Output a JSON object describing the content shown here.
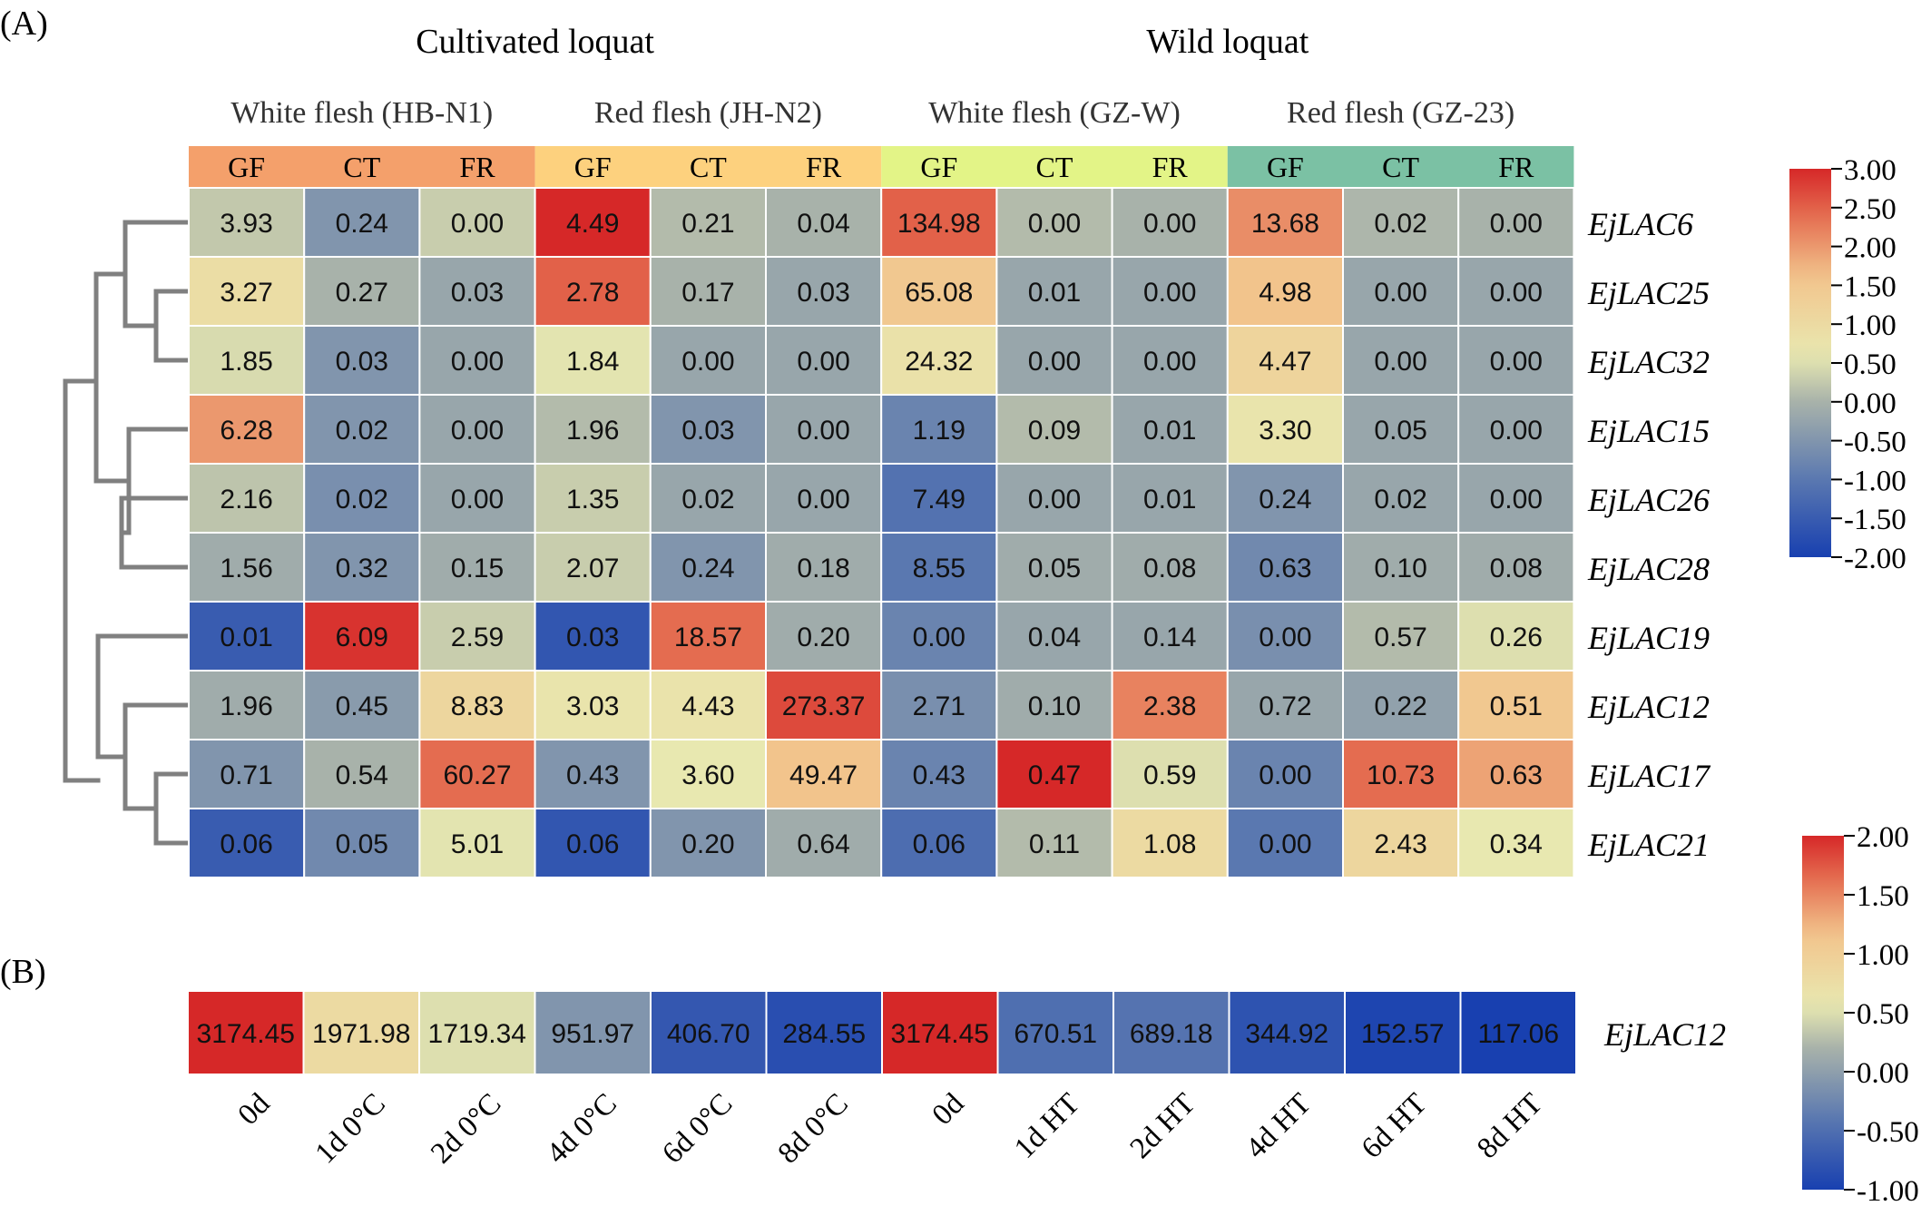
{
  "panel_labels": {
    "a": "(A)",
    "b": "(B)"
  },
  "chart_data": [
    {
      "type": "heatmap",
      "panel": "(A)",
      "top_groups": [
        "Cultivated loquat",
        "Wild loquat"
      ],
      "sub_groups": [
        {
          "label": "White flesh (HB-N1)",
          "color": "#F4A06B"
        },
        {
          "label": "Red flesh (JH-N2)",
          "color": "#FDD17E"
        },
        {
          "label": "White flesh (GZ-W)",
          "color": "#E3F487"
        },
        {
          "label": "Red flesh (GZ-23)",
          "color": "#7BC1A4"
        }
      ],
      "columns": [
        "GF",
        "CT",
        "FR",
        "GF",
        "CT",
        "FR",
        "GF",
        "CT",
        "FR",
        "GF",
        "CT",
        "FR"
      ],
      "rows": [
        "EjLAC6",
        "EjLAC25",
        "EjLAC32",
        "EjLAC15",
        "EjLAC26",
        "EjLAC28",
        "EjLAC19",
        "EjLAC12",
        "EjLAC17",
        "EjLAC21"
      ],
      "values": [
        [
          "3.93",
          "0.24",
          "0.00",
          "4.49",
          "0.21",
          "0.04",
          "134.98",
          "0.00",
          "0.00",
          "13.68",
          "0.02",
          "0.00"
        ],
        [
          "3.27",
          "0.27",
          "0.03",
          "2.78",
          "0.17",
          "0.03",
          "65.08",
          "0.01",
          "0.00",
          "4.98",
          "0.00",
          "0.00"
        ],
        [
          "1.85",
          "0.03",
          "0.00",
          "1.84",
          "0.00",
          "0.00",
          "24.32",
          "0.00",
          "0.00",
          "4.47",
          "0.00",
          "0.00"
        ],
        [
          "6.28",
          "0.02",
          "0.00",
          "1.96",
          "0.03",
          "0.00",
          "1.19",
          "0.09",
          "0.01",
          "3.30",
          "0.05",
          "0.00"
        ],
        [
          "2.16",
          "0.02",
          "0.00",
          "1.35",
          "0.02",
          "0.00",
          "7.49",
          "0.00",
          "0.01",
          "0.24",
          "0.02",
          "0.00"
        ],
        [
          "1.56",
          "0.32",
          "0.15",
          "2.07",
          "0.24",
          "0.18",
          "8.55",
          "0.05",
          "0.08",
          "0.63",
          "0.10",
          "0.08"
        ],
        [
          "0.01",
          "6.09",
          "2.59",
          "0.03",
          "18.57",
          "0.20",
          "0.00",
          "0.04",
          "0.14",
          "0.00",
          "0.57",
          "0.26"
        ],
        [
          "1.96",
          "0.45",
          "8.83",
          "3.03",
          "4.43",
          "273.37",
          "2.71",
          "0.10",
          "2.38",
          "0.72",
          "0.22",
          "0.51"
        ],
        [
          "0.71",
          "0.54",
          "60.27",
          "0.43",
          "3.60",
          "49.47",
          "0.43",
          "0.47",
          "0.59",
          "0.00",
          "10.73",
          "0.63"
        ],
        [
          "0.06",
          "0.05",
          "5.01",
          "0.06",
          "0.20",
          "0.64",
          "0.06",
          "0.11",
          "1.08",
          "0.00",
          "2.43",
          "0.34"
        ]
      ],
      "color_scale": [
        [
          0.24,
          -0.5,
          0.3,
          3.5,
          0.1,
          0.0,
          2.5,
          0.1,
          0.0,
          2.1,
          0.05,
          0.0
        ],
        [
          0.9,
          0.0,
          -0.2,
          2.5,
          0.0,
          -0.2,
          1.5,
          -0.2,
          -0.2,
          1.6,
          -0.2,
          -0.2
        ],
        [
          0.45,
          -0.5,
          -0.2,
          0.55,
          -0.2,
          -0.2,
          0.8,
          -0.2,
          -0.2,
          1.15,
          -0.2,
          -0.2
        ],
        [
          2.0,
          -0.5,
          -0.2,
          0.1,
          -0.5,
          -0.2,
          -0.8,
          0.1,
          -0.2,
          0.7,
          -0.2,
          -0.2
        ],
        [
          0.2,
          -0.6,
          -0.2,
          0.3,
          -0.2,
          -0.2,
          -1.1,
          -0.2,
          -0.2,
          -0.5,
          -0.2,
          -0.2
        ],
        [
          -0.1,
          -0.5,
          -0.1,
          0.3,
          -0.5,
          -0.1,
          -1.0,
          -0.1,
          -0.1,
          -0.7,
          -0.1,
          -0.1
        ],
        [
          -1.5,
          2.9,
          0.3,
          -1.6,
          2.4,
          -0.1,
          -0.8,
          -0.2,
          -0.2,
          -0.6,
          0.1,
          0.5
        ],
        [
          -0.1,
          -0.4,
          1.1,
          0.7,
          0.75,
          2.7,
          -0.6,
          -0.1,
          2.2,
          -0.2,
          -0.3,
          1.5
        ],
        [
          -0.5,
          0.0,
          2.4,
          -0.5,
          0.6,
          1.6,
          -0.8,
          3.0,
          0.5,
          -0.8,
          2.4,
          1.9
        ],
        [
          -1.5,
          -0.7,
          0.55,
          -1.6,
          -0.5,
          -0.1,
          -1.2,
          0.1,
          1.0,
          -1.0,
          1.1,
          0.6
        ]
      ],
      "colorbar_ticks": [
        "3.00",
        "2.50",
        "2.00",
        "1.50",
        "1.00",
        "0.50",
        "0.00",
        "-0.50",
        "-1.00",
        "-1.50",
        "-2.00"
      ],
      "colorbar_range": [
        -2.0,
        3.0
      ],
      "has_dendrogram": true
    },
    {
      "type": "heatmap",
      "panel": "(B)",
      "row": "EjLAC12",
      "columns": [
        "0d",
        "1d 0°C",
        "2d 0°C",
        "4d 0°C",
        "6d 0°C",
        "8d 0°C",
        "0d",
        "1d HT",
        "2d HT",
        "4d HT",
        "6d HT",
        "8d HT"
      ],
      "values": [
        "3174.45",
        "1971.98",
        "1719.34",
        "951.97",
        "406.70",
        "284.55",
        "3174.45",
        "670.51",
        "689.18",
        "344.92",
        "152.57",
        "117.06"
      ],
      "color_scale": [
        2.0,
        0.8,
        0.5,
        -0.1,
        -0.75,
        -0.85,
        2.0,
        -0.5,
        -0.45,
        -0.8,
        -0.95,
        -1.0
      ],
      "colorbar_ticks": [
        "2.00",
        "1.50",
        "1.00",
        "0.50",
        "0.00",
        "-0.50",
        "-1.00"
      ],
      "colorbar_range": [
        -1.0,
        2.0
      ]
    }
  ]
}
